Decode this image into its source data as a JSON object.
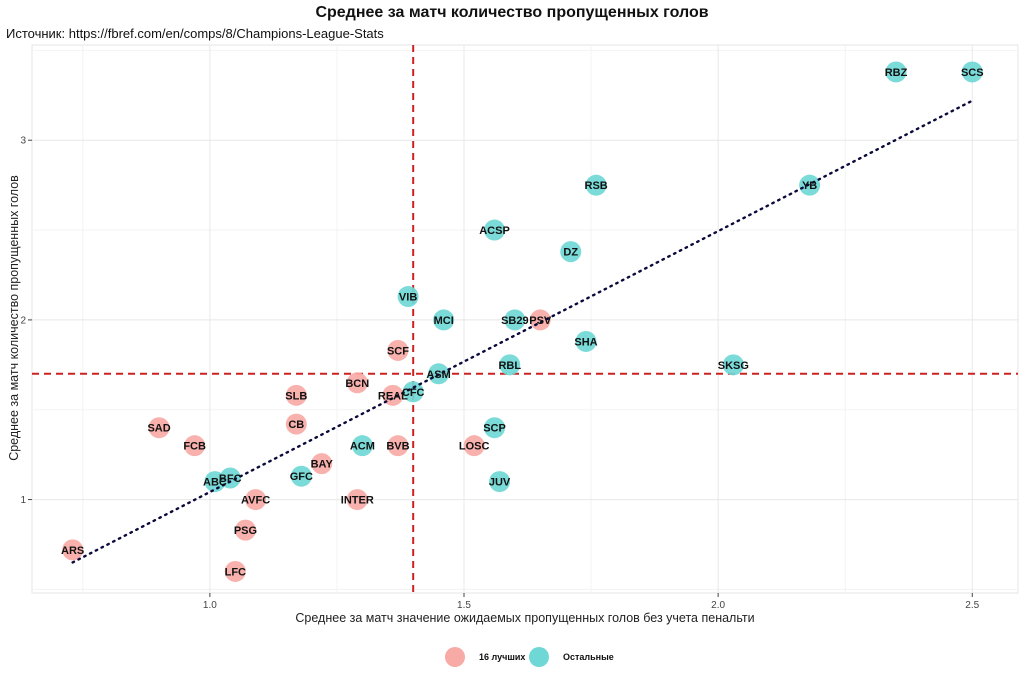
{
  "chart_data": {
    "type": "scatter",
    "title": "Среднее за матч количество пропущенных голов",
    "subtitle": "Источник: https://fbref.com/en/comps/8/Champions-League-Stats",
    "xlabel": "Среднее за матч значение ожидаемых пропущенных голов без учета пенальти",
    "ylabel": "Среднее за матч количество пропущенных голов",
    "xlim": [
      0.65,
      2.59
    ],
    "ylim": [
      0.48,
      3.53
    ],
    "xticks": [
      1.0,
      1.5,
      2.0,
      2.5
    ],
    "xtick_labels": [
      "1.0",
      "1.5",
      "2.0",
      "2.5"
    ],
    "yticks": [
      1,
      2,
      3
    ],
    "ytick_labels": [
      "1",
      "2",
      "3"
    ],
    "grid": true,
    "legend_position": "bottom",
    "reference_lines": {
      "x_mean": 1.4,
      "y_mean": 1.7,
      "color": "#cc2222",
      "style": "dashed"
    },
    "trend_line": {
      "x": [
        0.73,
        2.5
      ],
      "y": [
        0.65,
        3.22
      ],
      "color": "#0a0a3c",
      "style": "dotted"
    },
    "series": [
      {
        "name": "16 лучших",
        "color": "#f8aaa6",
        "points": [
          {
            "label": "ARS",
            "x": 0.73,
            "y": 0.72
          },
          {
            "label": "LFC",
            "x": 1.05,
            "y": 0.6
          },
          {
            "label": "PSG",
            "x": 1.07,
            "y": 0.83
          },
          {
            "label": "AVFC",
            "x": 1.09,
            "y": 1.0
          },
          {
            "label": "INTER",
            "x": 1.29,
            "y": 1.0
          },
          {
            "label": "BAY",
            "x": 1.22,
            "y": 1.2
          },
          {
            "label": "BVB",
            "x": 1.37,
            "y": 1.3
          },
          {
            "label": "FCB",
            "x": 0.97,
            "y": 1.3
          },
          {
            "label": "SAD",
            "x": 0.9,
            "y": 1.4
          },
          {
            "label": "CB",
            "x": 1.17,
            "y": 1.42
          },
          {
            "label": "SLB",
            "x": 1.17,
            "y": 1.58
          },
          {
            "label": "BCN",
            "x": 1.29,
            "y": 1.65
          },
          {
            "label": "REAL",
            "x": 1.36,
            "y": 1.58
          },
          {
            "label": "SCF",
            "x": 1.37,
            "y": 1.83
          },
          {
            "label": "LOSC",
            "x": 1.52,
            "y": 1.3
          },
          {
            "label": "PSV",
            "x": 1.65,
            "y": 2.0
          }
        ]
      },
      {
        "name": "Остальные",
        "color": "#6fd8d6",
        "points": [
          {
            "label": "ABC",
            "x": 1.01,
            "y": 1.1
          },
          {
            "label": "BFC",
            "x": 1.04,
            "y": 1.12
          },
          {
            "label": "GFC",
            "x": 1.18,
            "y": 1.13
          },
          {
            "label": "ACM",
            "x": 1.3,
            "y": 1.3
          },
          {
            "label": "CFC",
            "x": 1.4,
            "y": 1.6
          },
          {
            "label": "ASM",
            "x": 1.45,
            "y": 1.7
          },
          {
            "label": "VIB",
            "x": 1.39,
            "y": 2.13
          },
          {
            "label": "MCI",
            "x": 1.46,
            "y": 2.0
          },
          {
            "label": "SB29",
            "x": 1.6,
            "y": 2.0
          },
          {
            "label": "RBL",
            "x": 1.59,
            "y": 1.75
          },
          {
            "label": "SCP",
            "x": 1.56,
            "y": 1.4
          },
          {
            "label": "JUV",
            "x": 1.57,
            "y": 1.1
          },
          {
            "label": "SHA",
            "x": 1.74,
            "y": 1.88
          },
          {
            "label": "ACSP",
            "x": 1.56,
            "y": 2.5
          },
          {
            "label": "DZ",
            "x": 1.71,
            "y": 2.38
          },
          {
            "label": "RSB",
            "x": 1.76,
            "y": 2.75
          },
          {
            "label": "SKSG",
            "x": 2.03,
            "y": 1.75
          },
          {
            "label": "YB",
            "x": 2.18,
            "y": 2.75
          },
          {
            "label": "RBZ",
            "x": 2.35,
            "y": 3.38
          },
          {
            "label": "SCS",
            "x": 2.5,
            "y": 3.38
          }
        ]
      }
    ]
  }
}
